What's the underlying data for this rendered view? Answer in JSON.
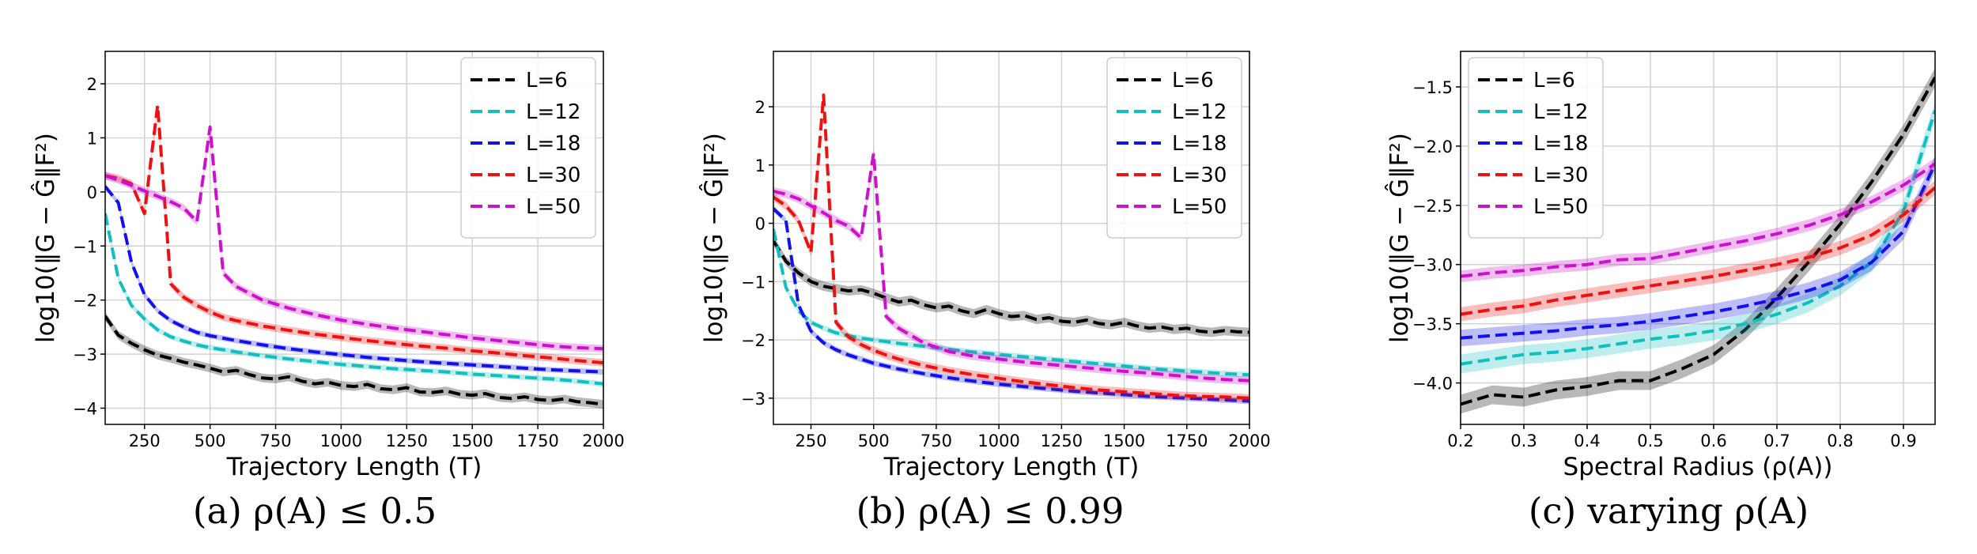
{
  "series_colors": {
    "L=6": "#000000",
    "L=12": "#11bfbf",
    "L=18": "#1111ee",
    "L=30": "#ee1111",
    "L=50": "#cc11cc"
  },
  "chart_data": [
    {
      "type": "line",
      "panel": "a",
      "caption": "(a) ρ(A) ≤ 0.5",
      "xlabel": "Trajectory Length (T)",
      "ylabel": "log10(‖G − Ĝ‖F²)",
      "xlim": [
        100,
        2000
      ],
      "ylim": [
        -4.3,
        2.6
      ],
      "xticks": [
        250,
        500,
        750,
        1000,
        1250,
        1500,
        1750,
        2000
      ],
      "yticks": [
        -4,
        -3,
        -2,
        -1,
        0,
        1,
        2
      ],
      "legend": "top-right",
      "grid": true,
      "series": [
        {
          "name": "L=6",
          "band": 0.08,
          "x": [
            100,
            150,
            200,
            250,
            300,
            350,
            400,
            450,
            500,
            550,
            600,
            650,
            700,
            750,
            800,
            850,
            900,
            950,
            1000,
            1050,
            1100,
            1150,
            1200,
            1250,
            1300,
            1350,
            1400,
            1450,
            1500,
            1550,
            1600,
            1650,
            1700,
            1750,
            1800,
            1850,
            1900,
            1950,
            2000
          ],
          "y": [
            -2.3,
            -2.65,
            -2.8,
            -2.92,
            -3.02,
            -3.08,
            -3.15,
            -3.2,
            -3.26,
            -3.33,
            -3.3,
            -3.38,
            -3.44,
            -3.46,
            -3.42,
            -3.5,
            -3.55,
            -3.52,
            -3.58,
            -3.6,
            -3.56,
            -3.64,
            -3.66,
            -3.62,
            -3.7,
            -3.71,
            -3.68,
            -3.74,
            -3.76,
            -3.73,
            -3.8,
            -3.82,
            -3.79,
            -3.84,
            -3.86,
            -3.83,
            -3.88,
            -3.9,
            -3.93
          ]
        },
        {
          "name": "L=12",
          "band": 0.05,
          "x": [
            100,
            150,
            200,
            250,
            300,
            350,
            400,
            450,
            500,
            600,
            700,
            800,
            900,
            1000,
            1100,
            1200,
            1300,
            1400,
            1500,
            1600,
            1700,
            1800,
            1900,
            2000
          ],
          "y": [
            -0.4,
            -1.6,
            -2.1,
            -2.35,
            -2.55,
            -2.68,
            -2.76,
            -2.83,
            -2.88,
            -2.96,
            -3.03,
            -3.09,
            -3.14,
            -3.19,
            -3.23,
            -3.27,
            -3.3,
            -3.33,
            -3.37,
            -3.4,
            -3.43,
            -3.46,
            -3.5,
            -3.55
          ]
        },
        {
          "name": "L=18",
          "band": 0.05,
          "x": [
            100,
            150,
            200,
            250,
            300,
            350,
            400,
            450,
            500,
            600,
            700,
            800,
            900,
            1000,
            1100,
            1200,
            1300,
            1400,
            1500,
            1600,
            1700,
            1800,
            1900,
            2000
          ],
          "y": [
            0.1,
            -0.2,
            -1.3,
            -1.9,
            -2.2,
            -2.38,
            -2.5,
            -2.6,
            -2.66,
            -2.75,
            -2.83,
            -2.9,
            -2.96,
            -3.01,
            -3.06,
            -3.1,
            -3.14,
            -3.17,
            -3.2,
            -3.23,
            -3.26,
            -3.29,
            -3.31,
            -3.33
          ]
        },
        {
          "name": "L=30",
          "band": 0.07,
          "x": [
            100,
            150,
            200,
            250,
            300,
            350,
            400,
            450,
            500,
            550,
            600,
            700,
            800,
            900,
            1000,
            1100,
            1200,
            1300,
            1400,
            1500,
            1600,
            1700,
            1800,
            1900,
            2000
          ],
          "y": [
            0.3,
            0.25,
            0.15,
            -0.4,
            1.6,
            -1.7,
            -1.95,
            -2.1,
            -2.22,
            -2.32,
            -2.38,
            -2.48,
            -2.56,
            -2.63,
            -2.69,
            -2.75,
            -2.8,
            -2.85,
            -2.89,
            -2.94,
            -2.98,
            -3.03,
            -3.07,
            -3.12,
            -3.16
          ]
        },
        {
          "name": "L=50",
          "band": 0.07,
          "x": [
            100,
            150,
            200,
            250,
            300,
            350,
            400,
            450,
            500,
            550,
            600,
            700,
            800,
            900,
            1000,
            1100,
            1200,
            1300,
            1400,
            1500,
            1600,
            1700,
            1800,
            1900,
            2000
          ],
          "y": [
            0.3,
            0.22,
            0.12,
            0.02,
            -0.08,
            -0.18,
            -0.3,
            -0.55,
            1.2,
            -1.5,
            -1.75,
            -2.0,
            -2.15,
            -2.27,
            -2.37,
            -2.45,
            -2.52,
            -2.58,
            -2.64,
            -2.7,
            -2.75,
            -2.8,
            -2.85,
            -2.88,
            -2.9
          ]
        }
      ]
    },
    {
      "type": "line",
      "panel": "b",
      "caption": "(b) ρ(A) ≤ 0.99",
      "xlabel": "Trajectory Length (T)",
      "ylabel": "log10(‖G − Ĝ‖F²)",
      "xlim": [
        100,
        2000
      ],
      "ylim": [
        -3.45,
        2.95
      ],
      "xticks": [
        250,
        500,
        750,
        1000,
        1250,
        1500,
        1750,
        2000
      ],
      "yticks": [
        -3,
        -2,
        -1,
        0,
        1,
        2
      ],
      "legend": "top-right",
      "grid": true,
      "series": [
        {
          "name": "L=6",
          "band": 0.08,
          "x": [
            100,
            150,
            200,
            250,
            300,
            350,
            400,
            450,
            500,
            550,
            600,
            650,
            700,
            750,
            800,
            850,
            900,
            950,
            1000,
            1050,
            1100,
            1150,
            1200,
            1250,
            1300,
            1350,
            1400,
            1450,
            1500,
            1550,
            1600,
            1650,
            1700,
            1750,
            1800,
            1850,
            1900,
            1950,
            2000
          ],
          "y": [
            -0.3,
            -0.65,
            -0.85,
            -1.0,
            -1.08,
            -1.12,
            -1.16,
            -1.14,
            -1.2,
            -1.28,
            -1.35,
            -1.32,
            -1.4,
            -1.45,
            -1.42,
            -1.5,
            -1.55,
            -1.48,
            -1.55,
            -1.6,
            -1.58,
            -1.65,
            -1.62,
            -1.68,
            -1.7,
            -1.66,
            -1.72,
            -1.74,
            -1.7,
            -1.76,
            -1.8,
            -1.78,
            -1.82,
            -1.8,
            -1.85,
            -1.87,
            -1.84,
            -1.86,
            -1.87
          ]
        },
        {
          "name": "L=12",
          "band": 0.05,
          "x": [
            100,
            150,
            200,
            250,
            300,
            350,
            400,
            450,
            500,
            600,
            700,
            800,
            900,
            1000,
            1100,
            1200,
            1300,
            1400,
            1500,
            1600,
            1700,
            1800,
            1900,
            2000
          ],
          "y": [
            -0.1,
            -1.1,
            -1.5,
            -1.7,
            -1.8,
            -1.88,
            -1.93,
            -1.97,
            -2.0,
            -2.06,
            -2.11,
            -2.16,
            -2.21,
            -2.25,
            -2.29,
            -2.33,
            -2.37,
            -2.41,
            -2.45,
            -2.49,
            -2.52,
            -2.55,
            -2.58,
            -2.6
          ]
        },
        {
          "name": "L=18",
          "band": 0.05,
          "x": [
            100,
            150,
            200,
            250,
            300,
            350,
            400,
            450,
            500,
            600,
            700,
            800,
            900,
            1000,
            1100,
            1200,
            1300,
            1400,
            1500,
            1600,
            1700,
            1800,
            1900,
            2000
          ],
          "y": [
            0.25,
            0.05,
            -1.4,
            -1.85,
            -2.05,
            -2.17,
            -2.26,
            -2.33,
            -2.4,
            -2.5,
            -2.58,
            -2.65,
            -2.71,
            -2.76,
            -2.8,
            -2.84,
            -2.88,
            -2.91,
            -2.94,
            -2.97,
            -2.99,
            -3.01,
            -3.03,
            -3.05
          ]
        },
        {
          "name": "L=30",
          "band": 0.07,
          "x": [
            100,
            150,
            200,
            250,
            300,
            350,
            400,
            450,
            500,
            550,
            600,
            700,
            800,
            900,
            1000,
            1100,
            1200,
            1300,
            1400,
            1500,
            1600,
            1700,
            1800,
            1900,
            2000
          ],
          "y": [
            0.45,
            0.3,
            0.05,
            -0.5,
            2.2,
            -1.7,
            -1.95,
            -2.08,
            -2.18,
            -2.26,
            -2.33,
            -2.44,
            -2.53,
            -2.6,
            -2.66,
            -2.72,
            -2.77,
            -2.82,
            -2.86,
            -2.89,
            -2.92,
            -2.95,
            -2.97,
            -2.98,
            -3.0
          ]
        },
        {
          "name": "L=50",
          "band": 0.07,
          "x": [
            100,
            150,
            200,
            250,
            300,
            350,
            400,
            450,
            500,
            550,
            600,
            700,
            800,
            900,
            1000,
            1100,
            1200,
            1300,
            1400,
            1500,
            1600,
            1700,
            1800,
            1900,
            2000
          ],
          "y": [
            0.55,
            0.5,
            0.42,
            0.3,
            0.18,
            0.05,
            -0.05,
            -0.25,
            1.2,
            -1.6,
            -1.8,
            -2.05,
            -2.2,
            -2.28,
            -2.33,
            -2.38,
            -2.42,
            -2.46,
            -2.5,
            -2.54,
            -2.57,
            -2.61,
            -2.65,
            -2.68,
            -2.7
          ]
        }
      ]
    },
    {
      "type": "line",
      "panel": "c",
      "caption": "(c) varying ρ(A)",
      "xlabel": "Spectral Radius (ρ(A))",
      "ylabel": "log10(‖G − Ĝ‖F²)",
      "xlim": [
        0.2,
        0.95
      ],
      "ylim": [
        -4.35,
        -1.2
      ],
      "xticks": [
        0.2,
        0.3,
        0.4,
        0.5,
        0.6,
        0.7,
        0.8,
        0.9
      ],
      "yticks": [
        -4.0,
        -3.5,
        -3.0,
        -2.5,
        -2.0,
        -1.5
      ],
      "legend": "top-left",
      "grid": true,
      "series": [
        {
          "name": "L=6",
          "band": 0.08,
          "x": [
            0.2,
            0.25,
            0.3,
            0.35,
            0.4,
            0.45,
            0.5,
            0.55,
            0.6,
            0.65,
            0.7,
            0.75,
            0.8,
            0.85,
            0.9,
            0.95
          ],
          "y": [
            -4.18,
            -4.1,
            -4.12,
            -4.06,
            -4.03,
            -3.98,
            -3.98,
            -3.88,
            -3.76,
            -3.55,
            -3.28,
            -2.98,
            -2.66,
            -2.3,
            -1.9,
            -1.42
          ]
        },
        {
          "name": "L=12",
          "band": 0.08,
          "x": [
            0.2,
            0.25,
            0.3,
            0.35,
            0.4,
            0.45,
            0.5,
            0.55,
            0.6,
            0.65,
            0.7,
            0.75,
            0.8,
            0.85,
            0.9,
            0.95
          ],
          "y": [
            -3.84,
            -3.8,
            -3.76,
            -3.74,
            -3.71,
            -3.67,
            -3.63,
            -3.6,
            -3.56,
            -3.5,
            -3.42,
            -3.32,
            -3.18,
            -2.98,
            -2.55,
            -1.7
          ]
        },
        {
          "name": "L=18",
          "band": 0.07,
          "x": [
            0.2,
            0.25,
            0.3,
            0.35,
            0.4,
            0.45,
            0.5,
            0.55,
            0.6,
            0.65,
            0.7,
            0.75,
            0.8,
            0.85,
            0.9,
            0.95
          ],
          "y": [
            -3.62,
            -3.6,
            -3.58,
            -3.56,
            -3.53,
            -3.51,
            -3.48,
            -3.44,
            -3.4,
            -3.35,
            -3.29,
            -3.22,
            -3.13,
            -2.98,
            -2.72,
            -2.15
          ]
        },
        {
          "name": "L=30",
          "band": 0.06,
          "x": [
            0.2,
            0.25,
            0.3,
            0.35,
            0.4,
            0.45,
            0.5,
            0.55,
            0.6,
            0.65,
            0.7,
            0.75,
            0.8,
            0.85,
            0.9,
            0.95
          ],
          "y": [
            -3.42,
            -3.38,
            -3.35,
            -3.3,
            -3.26,
            -3.22,
            -3.18,
            -3.14,
            -3.1,
            -3.05,
            -3.0,
            -2.94,
            -2.86,
            -2.75,
            -2.58,
            -2.35
          ]
        },
        {
          "name": "L=50",
          "band": 0.05,
          "x": [
            0.2,
            0.25,
            0.3,
            0.35,
            0.4,
            0.45,
            0.5,
            0.55,
            0.6,
            0.65,
            0.7,
            0.75,
            0.8,
            0.85,
            0.9,
            0.95
          ],
          "y": [
            -3.1,
            -3.07,
            -3.05,
            -3.02,
            -3.0,
            -2.96,
            -2.95,
            -2.9,
            -2.85,
            -2.8,
            -2.74,
            -2.67,
            -2.58,
            -2.47,
            -2.33,
            -2.15
          ]
        }
      ]
    }
  ]
}
